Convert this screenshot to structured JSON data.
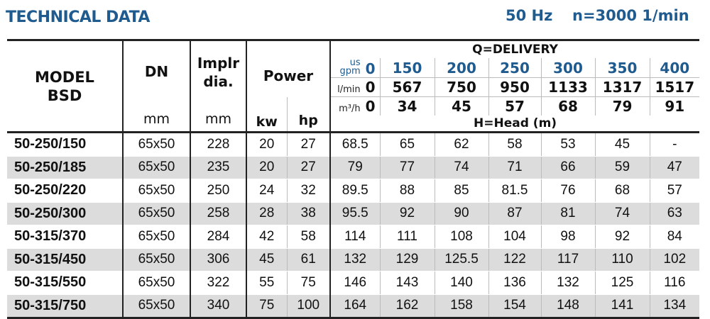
{
  "title": "TECHNICAL DATA",
  "frequency": "50 Hz",
  "speed": "n=3000 1/min",
  "header": {
    "model": "MODEL",
    "model_sub": "BSD",
    "dn": "DN",
    "dn_unit": "mm",
    "impeller": "Implr",
    "impeller2": "dia.",
    "impeller_unit": "mm",
    "power": "Power",
    "kw": "kw",
    "hp": "hp",
    "delivery": "Q=DELIVERY",
    "head": "H=Head (m)",
    "gpm_unit_top": "us",
    "gpm_unit": "gpm",
    "lmin_unit": "l/min",
    "m3h_unit": "m³/h",
    "gpm": [
      "0",
      "150",
      "200",
      "250",
      "300",
      "350",
      "400"
    ],
    "lmin": [
      "0",
      "567",
      "750",
      "950",
      "1133",
      "1317",
      "1517"
    ],
    "m3h": [
      "0",
      "34",
      "45",
      "57",
      "68",
      "79",
      "91"
    ]
  },
  "rows": [
    {
      "model": "50-250/150",
      "dn": "65x50",
      "impeller": "228",
      "kw": "20",
      "hp": "27",
      "head": [
        "68.5",
        "65",
        "62",
        "58",
        "53",
        "45",
        "-"
      ]
    },
    {
      "model": "50-250/185",
      "dn": "65x50",
      "impeller": "235",
      "kw": "20",
      "hp": "27",
      "head": [
        "79",
        "77",
        "74",
        "71",
        "66",
        "59",
        "47"
      ]
    },
    {
      "model": "50-250/220",
      "dn": "65x50",
      "impeller": "250",
      "kw": "24",
      "hp": "32",
      "head": [
        "89.5",
        "88",
        "85",
        "81.5",
        "76",
        "68",
        "57"
      ]
    },
    {
      "model": "50-250/300",
      "dn": "65x50",
      "impeller": "258",
      "kw": "28",
      "hp": "38",
      "head": [
        "95.5",
        "92",
        "90",
        "87",
        "81",
        "74",
        "63"
      ]
    },
    {
      "model": "50-315/370",
      "dn": "65x50",
      "impeller": "284",
      "kw": "42",
      "hp": "58",
      "head": [
        "114",
        "111",
        "108",
        "104",
        "98",
        "92",
        "84"
      ]
    },
    {
      "model": "50-315/450",
      "dn": "65x50",
      "impeller": "306",
      "kw": "45",
      "hp": "61",
      "head": [
        "132",
        "129",
        "125.5",
        "122",
        "117",
        "110",
        "102"
      ]
    },
    {
      "model": "50-315/550",
      "dn": "65x50",
      "impeller": "322",
      "kw": "55",
      "hp": "75",
      "head": [
        "146",
        "143",
        "140",
        "136",
        "132",
        "125",
        "116"
      ]
    },
    {
      "model": "50-315/750",
      "dn": "65x50",
      "impeller": "340",
      "kw": "75",
      "hp": "100",
      "head": [
        "164",
        "162",
        "158",
        "154",
        "148",
        "141",
        "134"
      ]
    }
  ],
  "colors": {
    "accent": "#1f5b8e",
    "stripe": "#dcdcdc"
  }
}
